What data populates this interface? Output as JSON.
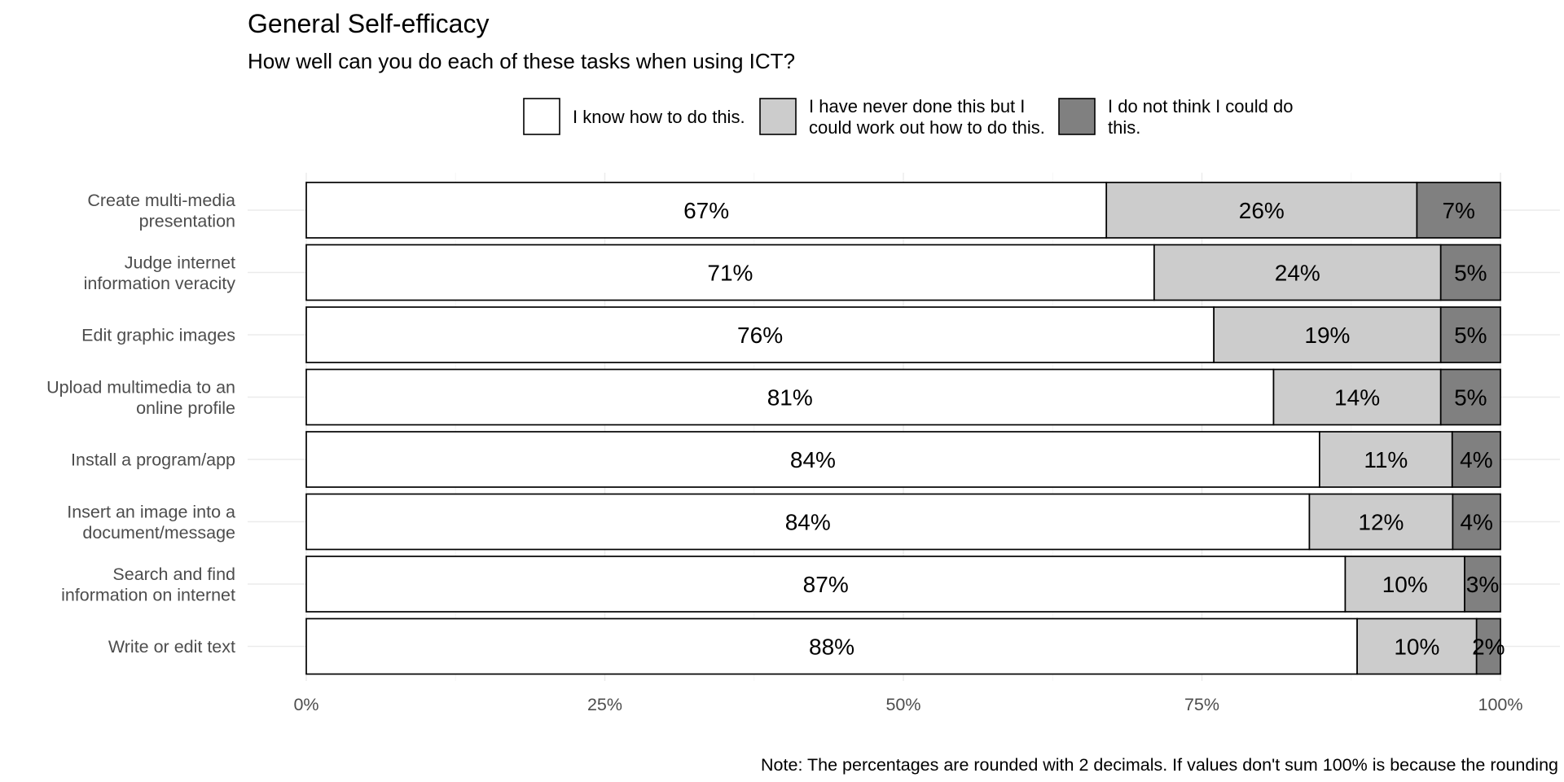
{
  "chart_data": {
    "type": "bar",
    "orientation": "horizontal",
    "stacked": true,
    "title": "General Self-efficacy",
    "subtitle": "How well can you do each of these tasks when using ICT?",
    "caption": "Note: The percentages are rounded with 2 decimals. If values don't sum 100% is because the rounding",
    "legend_position": "top",
    "grid": true,
    "xlim": [
      0,
      100
    ],
    "x_ticks": [
      0,
      25,
      50,
      75,
      100
    ],
    "x_tick_labels": [
      "0%",
      "25%",
      "50%",
      "75%",
      "100%"
    ],
    "categories": [
      [
        "Create multi-media",
        "presentation"
      ],
      [
        "Judge internet",
        "information veracity"
      ],
      [
        "Edit graphic images"
      ],
      [
        "Upload multimedia to an",
        "online profile"
      ],
      [
        "Install a program/app"
      ],
      [
        "Insert an image into a",
        "document/message"
      ],
      [
        "Search and find",
        "information on internet"
      ],
      [
        "Write or edit text"
      ]
    ],
    "series": [
      {
        "name": [
          "I know how to do this."
        ],
        "color": "#ffffff",
        "values": [
          67,
          71,
          76,
          81,
          84,
          84,
          87,
          88
        ],
        "labels": [
          "67%",
          "71%",
          "76%",
          "81%",
          "84%",
          "84%",
          "87%",
          "88%"
        ]
      },
      {
        "name": [
          "I have never done this but I",
          "could work out how to do this."
        ],
        "color": "#cccccc",
        "values": [
          26,
          24,
          19,
          14,
          11,
          12,
          10,
          10
        ],
        "labels": [
          "26%",
          "24%",
          "19%",
          "14%",
          "11%",
          "12%",
          "10%",
          "10%"
        ]
      },
      {
        "name": [
          "I do not think I could do",
          "this."
        ],
        "color": "#808080",
        "values": [
          7,
          5,
          5,
          5,
          4,
          4,
          3,
          2
        ],
        "labels": [
          "7%",
          "5%",
          "5%",
          "5%",
          "4%",
          "4%",
          "3%",
          "2%"
        ]
      }
    ]
  }
}
